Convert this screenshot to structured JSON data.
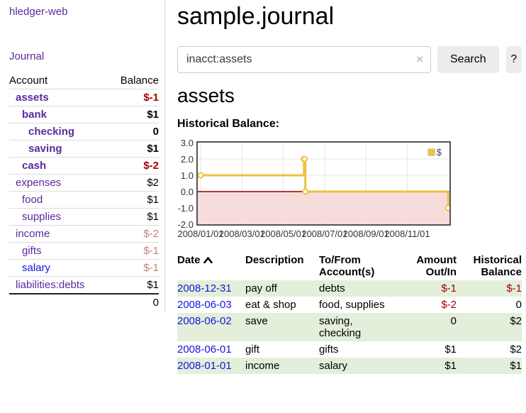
{
  "colors": {
    "purple": "#5b2a9b",
    "blue-link": "#1515dd",
    "neg-strong": "#a40000",
    "neg-muted": "#bf8080",
    "row-green": "#e3efda",
    "border-gray": "#dcdcdc",
    "btn-bg": "#ececec",
    "chart-yellow": "#edc240"
  },
  "sidebar": {
    "app_title": "hledger-web",
    "nav_journal": "Journal",
    "accounts": {
      "col_account": "Account",
      "col_balance": "Balance",
      "rows": [
        {
          "name": "assets",
          "depth": 1,
          "bold": true,
          "balance": "$-1",
          "tone": "neg-strong"
        },
        {
          "name": "bank",
          "depth": 2,
          "bold": true,
          "balance": "$1",
          "tone": "plain"
        },
        {
          "name": "checking",
          "depth": 3,
          "bold": true,
          "balance": "0",
          "tone": "plain"
        },
        {
          "name": "saving",
          "depth": 3,
          "bold": true,
          "balance": "$1",
          "tone": "plain"
        },
        {
          "name": "cash",
          "depth": 2,
          "bold": true,
          "balance": "$-2",
          "tone": "neg-strong"
        },
        {
          "name": "expenses",
          "depth": 1,
          "bold": false,
          "balance": "$2",
          "tone": "plain"
        },
        {
          "name": "food",
          "depth": 2,
          "bold": false,
          "balance": "$1",
          "tone": "plain"
        },
        {
          "name": "supplies",
          "depth": 2,
          "bold": false,
          "balance": "$1",
          "tone": "plain"
        },
        {
          "name": "income",
          "depth": 1,
          "bold": false,
          "balance": "$-2",
          "tone": "neg-muted"
        },
        {
          "name": "gifts",
          "depth": 2,
          "bold": false,
          "balance": "$-1",
          "tone": "neg-muted"
        },
        {
          "name": "salary",
          "depth": 2,
          "bold": false,
          "balance": "$-1",
          "tone": "neg-muted",
          "link": "blue"
        },
        {
          "name": "liabilities:debts",
          "depth": 1,
          "bold": false,
          "balance": "$1",
          "tone": "plain"
        }
      ],
      "total": "0"
    }
  },
  "main": {
    "title": "sample.journal",
    "search": {
      "query": "inacct:assets",
      "clear": "×",
      "submit": "Search",
      "help": "?"
    },
    "heading": "assets",
    "chart_title": "Historical Balance:"
  },
  "register": {
    "headers": {
      "date": "Date",
      "description": "Description",
      "accounts": "To/From Account(s)",
      "amount": "Amount Out/In",
      "balance": "Historical Balance"
    },
    "rows": [
      {
        "date": "2008-12-31",
        "description": "pay off",
        "accounts": "debts",
        "amount": "$-1",
        "amount_tone": "neg",
        "balance": "$-1",
        "balance_tone": "neg"
      },
      {
        "date": "2008-06-03",
        "description": "eat & shop",
        "accounts": "food, supplies",
        "amount": "$-2",
        "amount_tone": "neg",
        "balance": "0",
        "balance_tone": "plain"
      },
      {
        "date": "2008-06-02",
        "description": "save",
        "accounts": "saving, checking",
        "amount": "0",
        "amount_tone": "plain",
        "balance": "$2",
        "balance_tone": "plain"
      },
      {
        "date": "2008-06-01",
        "description": "gift",
        "accounts": "gifts",
        "amount": "$1",
        "amount_tone": "plain",
        "balance": "$2",
        "balance_tone": "plain"
      },
      {
        "date": "2008-01-01",
        "description": "income",
        "accounts": "salary",
        "amount": "$1",
        "amount_tone": "plain",
        "balance": "$1",
        "balance_tone": "plain"
      }
    ]
  },
  "chart_data": {
    "type": "line",
    "step": true,
    "title": "Historical Balance:",
    "series": [
      {
        "name": "$",
        "color": "#edc240",
        "points": [
          [
            "2008-01-01",
            1
          ],
          [
            "2008-06-01",
            2
          ],
          [
            "2008-06-02",
            2
          ],
          [
            "2008-06-03",
            0
          ],
          [
            "2008-12-31",
            -1
          ]
        ]
      }
    ],
    "x_tick_labels": [
      "2008/01/01",
      "2008/03/01",
      "2008/05/01",
      "2008/07/01",
      "2008/09/01",
      "2008/11/01"
    ],
    "y_tick_labels": [
      "3.0",
      "2.0",
      "1.0",
      "0.0",
      "-1.0",
      "-2.0"
    ],
    "y_tick_values": [
      3,
      2,
      1,
      0,
      -1,
      -2
    ],
    "ylim": [
      -2,
      3
    ],
    "xlim": [
      "2008-01-01",
      "2009-01-02"
    ],
    "legend": {
      "label": "$",
      "position": "top-right"
    },
    "grid": true,
    "negative_fill": "#f8dcdc",
    "zero_line_color": "#8b0000",
    "grid_color": "#e6e6e6"
  }
}
